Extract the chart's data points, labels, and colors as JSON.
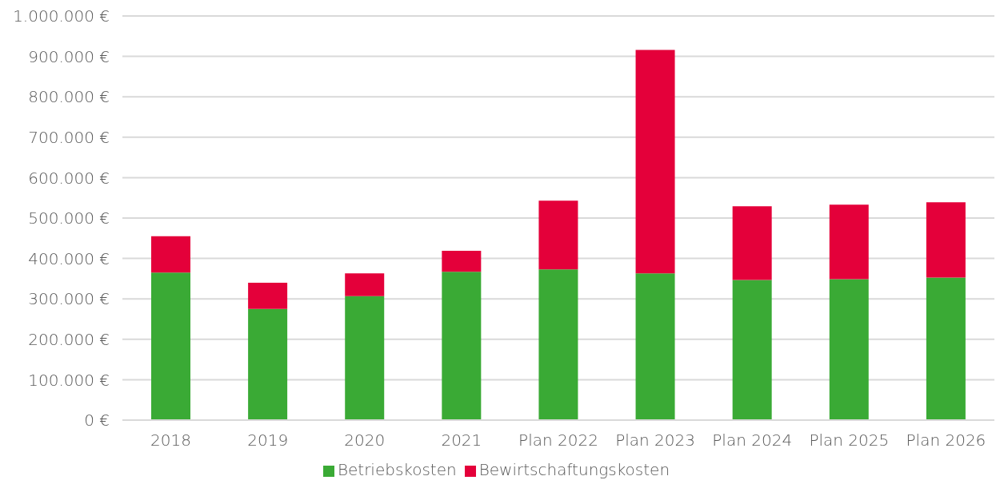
{
  "chart_data": {
    "type": "bar",
    "stacked": true,
    "categories": [
      "2018",
      "2019",
      "2020",
      "2021",
      "Plan 2022",
      "Plan 2023",
      "Plan 2024",
      "Plan 2025",
      "Plan 2026"
    ],
    "series": [
      {
        "name": "Betriebskosten",
        "color": "#3aaa35",
        "values": [
          365000,
          275000,
          307000,
          367000,
          373000,
          363000,
          347000,
          349000,
          353000
        ]
      },
      {
        "name": "Bewirtschaftungskosten",
        "color": "#e4003a",
        "values": [
          90000,
          65000,
          56000,
          52000,
          170000,
          553000,
          182000,
          184000,
          186000
        ]
      }
    ],
    "ylim": [
      0,
      1000000
    ],
    "yticks": [
      {
        "value": 0,
        "label": "0 €"
      },
      {
        "value": 100000,
        "label": "100.000 €"
      },
      {
        "value": 200000,
        "label": "200.000 €"
      },
      {
        "value": 300000,
        "label": "300.000 €"
      },
      {
        "value": 400000,
        "label": "400.000 €"
      },
      {
        "value": 500000,
        "label": "500.000 €"
      },
      {
        "value": 600000,
        "label": "600.000 €"
      },
      {
        "value": 700000,
        "label": "700.000 €"
      },
      {
        "value": 800000,
        "label": "800.000 €"
      },
      {
        "value": 900000,
        "label": "900.000 €"
      },
      {
        "value": 1000000,
        "label": "1.000.000 €"
      }
    ],
    "grid": "y",
    "legend": "bottom"
  }
}
